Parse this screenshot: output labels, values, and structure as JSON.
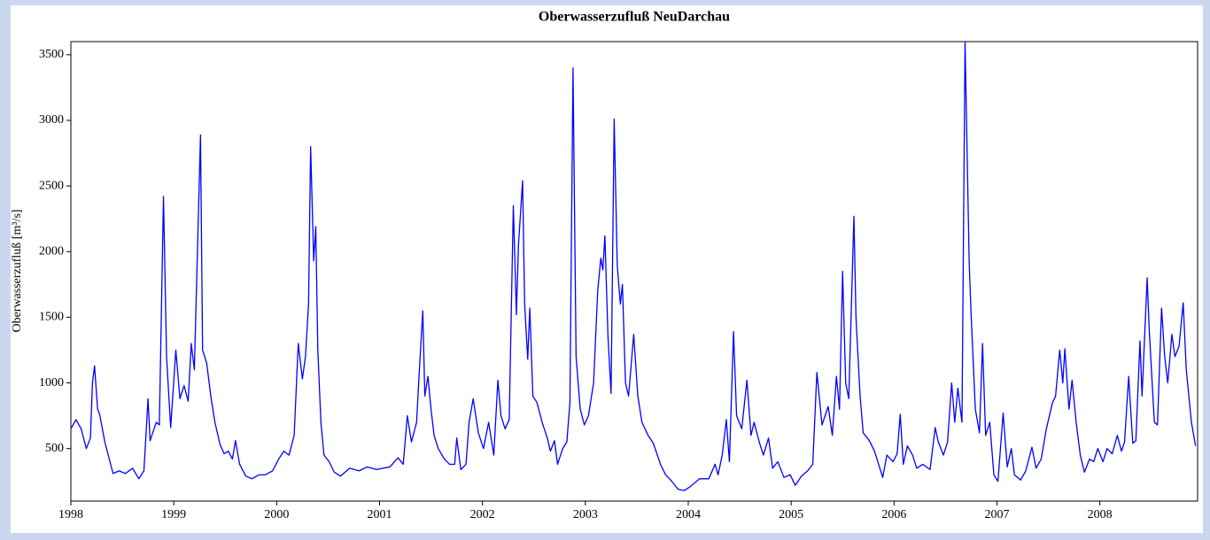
{
  "chart_data": {
    "type": "line",
    "title": "Oberwasserzufluß NeuDarchau",
    "y_label": "Oberwasserzufluß [m³/s]",
    "xlim": [
      1998,
      2008.95
    ],
    "xticks": [
      1998,
      1999,
      2000,
      2001,
      2002,
      2003,
      2004,
      2005,
      2006,
      2007,
      2008
    ],
    "ylim": [
      100,
      3600
    ],
    "yticks": [
      500,
      1000,
      1500,
      2000,
      2500,
      3000,
      3500
    ],
    "grid": false,
    "x": [
      1998.0,
      1998.05,
      1998.1,
      1998.15,
      1998.19,
      1998.21,
      1998.23,
      1998.26,
      1998.28,
      1998.33,
      1998.38,
      1998.41,
      1998.47,
      1998.53,
      1998.6,
      1998.66,
      1998.71,
      1998.75,
      1998.77,
      1998.83,
      1998.86,
      1998.9,
      1998.93,
      1998.97,
      1999.02,
      1999.06,
      1999.1,
      1999.14,
      1999.17,
      1999.2,
      1999.22,
      1999.26,
      1999.28,
      1999.32,
      1999.36,
      1999.4,
      1999.45,
      1999.49,
      1999.53,
      1999.57,
      1999.6,
      1999.64,
      1999.7,
      1999.76,
      1999.83,
      1999.89,
      1999.96,
      2000.02,
      2000.07,
      2000.12,
      2000.17,
      2000.21,
      2000.25,
      2000.28,
      2000.31,
      2000.33,
      2000.36,
      2000.38,
      2000.4,
      2000.43,
      2000.46,
      2000.51,
      2000.56,
      2000.62,
      2000.71,
      2000.8,
      2000.88,
      2000.97,
      2001.1,
      2001.18,
      2001.23,
      2001.27,
      2001.31,
      2001.36,
      2001.38,
      2001.42,
      2001.44,
      2001.47,
      2001.5,
      2001.53,
      2001.57,
      2001.63,
      2001.68,
      2001.73,
      2001.75,
      2001.79,
      2001.84,
      2001.87,
      2001.91,
      2001.96,
      2002.01,
      2002.06,
      2002.11,
      2002.15,
      2002.18,
      2002.22,
      2002.26,
      2002.3,
      2002.33,
      2002.35,
      2002.39,
      2002.41,
      2002.44,
      2002.46,
      2002.49,
      2002.53,
      2002.58,
      2002.63,
      2002.66,
      2002.7,
      2002.73,
      2002.78,
      2002.82,
      2002.85,
      2002.88,
      2002.91,
      2002.95,
      2002.99,
      2003.03,
      2003.08,
      2003.12,
      2003.15,
      2003.17,
      2003.19,
      2003.22,
      2003.25,
      2003.28,
      2003.31,
      2003.34,
      2003.36,
      2003.39,
      2003.42,
      2003.47,
      2003.51,
      2003.55,
      2003.61,
      2003.66,
      2003.7,
      2003.73,
      2003.78,
      2003.83,
      2003.9,
      2003.96,
      2004.02,
      2004.11,
      2004.2,
      2004.26,
      2004.29,
      2004.33,
      2004.37,
      2004.4,
      2004.44,
      2004.47,
      2004.52,
      2004.57,
      2004.61,
      2004.64,
      2004.69,
      2004.73,
      2004.78,
      2004.82,
      2004.87,
      2004.93,
      2004.99,
      2005.04,
      2005.1,
      2005.16,
      2005.21,
      2005.25,
      2005.3,
      2005.36,
      2005.4,
      2005.44,
      2005.47,
      2005.5,
      2005.53,
      2005.56,
      2005.61,
      2005.63,
      2005.67,
      2005.7,
      2005.76,
      2005.81,
      2005.85,
      2005.89,
      2005.93,
      2005.99,
      2006.03,
      2006.06,
      2006.09,
      2006.13,
      2006.18,
      2006.22,
      2006.28,
      2006.35,
      2006.4,
      2006.43,
      2006.48,
      2006.52,
      2006.56,
      2006.59,
      2006.62,
      2006.66,
      2006.69,
      2006.73,
      2006.75,
      2006.79,
      2006.83,
      2006.86,
      2006.89,
      2006.93,
      2006.97,
      2007.01,
      2007.06,
      2007.1,
      2007.14,
      2007.17,
      2007.23,
      2007.28,
      2007.34,
      2007.38,
      2007.43,
      2007.48,
      2007.54,
      2007.57,
      2007.61,
      2007.64,
      2007.66,
      2007.7,
      2007.73,
      2007.77,
      2007.81,
      2007.85,
      2007.9,
      2007.94,
      2007.98,
      2008.03,
      2008.07,
      2008.12,
      2008.17,
      2008.21,
      2008.24,
      2008.28,
      2008.32,
      2008.35,
      2008.39,
      2008.41,
      2008.46,
      2008.48,
      2008.53,
      2008.56,
      2008.6,
      2008.63,
      2008.66,
      2008.7,
      2008.73,
      2008.77,
      2008.81,
      2008.84,
      2008.89,
      2008.93
    ],
    "series": [
      {
        "name": "Oberwasserzufluß",
        "color": "#0000ff",
        "values": [
          650,
          720,
          650,
          500,
          580,
          1000,
          1130,
          800,
          760,
          550,
          400,
          310,
          330,
          310,
          350,
          270,
          330,
          880,
          560,
          700,
          680,
          2420,
          1200,
          660,
          1250,
          880,
          980,
          860,
          1300,
          1100,
          1700,
          2890,
          1250,
          1150,
          900,
          700,
          530,
          460,
          480,
          420,
          560,
          380,
          290,
          270,
          300,
          300,
          330,
          420,
          480,
          450,
          600,
          1300,
          1030,
          1200,
          1600,
          2800,
          1930,
          2190,
          1250,
          700,
          450,
          400,
          320,
          290,
          350,
          330,
          360,
          340,
          360,
          430,
          380,
          750,
          550,
          700,
          1000,
          1550,
          900,
          1050,
          800,
          600,
          500,
          420,
          380,
          380,
          580,
          340,
          380,
          700,
          880,
          620,
          500,
          700,
          450,
          1020,
          750,
          650,
          720,
          2350,
          1520,
          2050,
          2540,
          1600,
          1180,
          1570,
          900,
          850,
          700,
          580,
          480,
          560,
          380,
          500,
          550,
          850,
          3400,
          1200,
          800,
          680,
          750,
          1000,
          1700,
          1950,
          1860,
          2120,
          1350,
          920,
          3010,
          1900,
          1600,
          1750,
          1000,
          900,
          1370,
          900,
          700,
          600,
          540,
          450,
          380,
          300,
          260,
          190,
          180,
          210,
          270,
          270,
          380,
          300,
          450,
          720,
          400,
          1390,
          750,
          650,
          1020,
          600,
          700,
          550,
          450,
          580,
          350,
          400,
          280,
          300,
          220,
          290,
          330,
          380,
          1080,
          680,
          820,
          600,
          1050,
          800,
          1850,
          1000,
          880,
          2270,
          1500,
          900,
          620,
          560,
          480,
          380,
          280,
          450,
          400,
          460,
          760,
          380,
          520,
          450,
          350,
          380,
          340,
          660,
          550,
          450,
          550,
          1000,
          700,
          960,
          700,
          3600,
          1920,
          1500,
          800,
          620,
          1300,
          600,
          700,
          300,
          250,
          770,
          360,
          500,
          300,
          260,
          330,
          510,
          350,
          420,
          650,
          850,
          900,
          1250,
          1000,
          1260,
          800,
          1020,
          700,
          450,
          320,
          420,
          400,
          500,
          400,
          500,
          460,
          600,
          480,
          550,
          1050,
          540,
          560,
          1320,
          900,
          1800,
          1400,
          700,
          680,
          1570,
          1200,
          1000,
          1370,
          1200,
          1280,
          1610,
          1100,
          700,
          520
        ]
      }
    ]
  }
}
